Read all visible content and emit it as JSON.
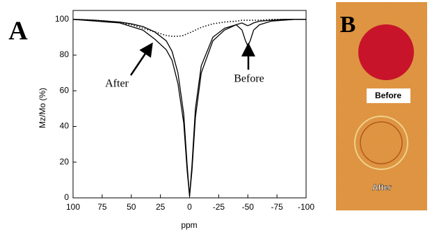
{
  "chart_data": {
    "type": "line",
    "panel_label": "A",
    "x_label": "ppm",
    "y_label": "Mz/Mo (%)",
    "annotations": [
      "After",
      "Before"
    ],
    "xlim": [
      100,
      -100
    ],
    "xticks": [
      100,
      75,
      50,
      25,
      0,
      -25,
      -50,
      -75,
      -100
    ],
    "ylim": [
      0,
      105
    ],
    "yticks": [
      0,
      20,
      40,
      60,
      80,
      100
    ],
    "x": [
      100,
      90,
      80,
      70,
      60,
      50,
      40,
      30,
      20,
      15,
      10,
      5,
      2,
      0,
      -2,
      -5,
      -10,
      -20,
      -30,
      -40,
      -45,
      -48,
      -50,
      -52,
      -55,
      -60,
      -70,
      -80,
      -90,
      -100
    ],
    "series": [
      {
        "color": "#000000",
        "dash": "solid",
        "values": [
          100,
          99.5,
          99,
          98.5,
          98,
          96,
          94,
          89,
          83,
          77,
          64,
          42,
          15,
          1,
          15,
          45,
          70,
          88,
          94,
          97,
          98,
          97,
          96.5,
          97,
          98,
          99,
          99.5,
          100,
          100,
          100
        ]
      },
      {
        "color": "#000000",
        "dash": "solid",
        "values": [
          100,
          99.8,
          99.5,
          99,
          98.5,
          97.5,
          96,
          93,
          88,
          82,
          70,
          47,
          18,
          1,
          18,
          50,
          74,
          90,
          95,
          97,
          94,
          88,
          85,
          88,
          94,
          97,
          99,
          99.5,
          100,
          100
        ]
      },
      {
        "color": "#000000",
        "dash": "dotted",
        "values": [
          100,
          99.8,
          99.5,
          99,
          98,
          97,
          95,
          93,
          91,
          90.5,
          90.5,
          91,
          92,
          92.5,
          93,
          94,
          95.5,
          97.5,
          98.5,
          99,
          99.5,
          99.5,
          99.5,
          99.5,
          99.5,
          99.5,
          100,
          100,
          100,
          100
        ]
      }
    ]
  },
  "panel_b": {
    "label": "B",
    "captions": [
      "Before",
      "After"
    ]
  }
}
